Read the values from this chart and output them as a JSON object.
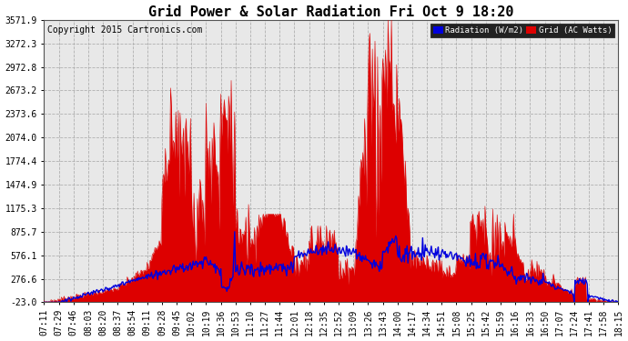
{
  "title": "Grid Power & Solar Radiation Fri Oct 9 18:20",
  "copyright": "Copyright 2015 Cartronics.com",
  "legend_radiation": "Radiation (W/m2)",
  "legend_grid": "Grid (AC Watts)",
  "ylabel_values": [
    "-23.0",
    "276.6",
    "576.1",
    "875.7",
    "1175.3",
    "1474.9",
    "1774.4",
    "2074.0",
    "2373.6",
    "2673.2",
    "2972.8",
    "3272.3",
    "3571.9"
  ],
  "y_ticks": [
    -23.0,
    276.6,
    576.1,
    875.7,
    1175.3,
    1474.9,
    1774.4,
    2074.0,
    2373.6,
    2673.2,
    2972.8,
    3272.3,
    3571.9
  ],
  "ylim": [
    -23.0,
    3571.9
  ],
  "background_color": "#ffffff",
  "plot_bg_color": "#e8e8e8",
  "grid_color": "#aaaaaa",
  "radiation_color": "#0000dd",
  "grid_fill_color": "#dd0000",
  "title_fontsize": 11,
  "copyright_fontsize": 7,
  "tick_fontsize": 7,
  "x_tick_labels": [
    "07:11",
    "07:29",
    "07:46",
    "08:03",
    "08:20",
    "08:37",
    "08:54",
    "09:11",
    "09:28",
    "09:45",
    "10:02",
    "10:19",
    "10:36",
    "10:53",
    "11:10",
    "11:27",
    "11:44",
    "12:01",
    "12:18",
    "12:35",
    "12:52",
    "13:09",
    "13:26",
    "13:43",
    "14:00",
    "14:17",
    "14:34",
    "14:51",
    "15:08",
    "15:25",
    "15:42",
    "15:59",
    "16:16",
    "16:33",
    "16:50",
    "17:07",
    "17:24",
    "17:41",
    "17:58",
    "18:15"
  ]
}
